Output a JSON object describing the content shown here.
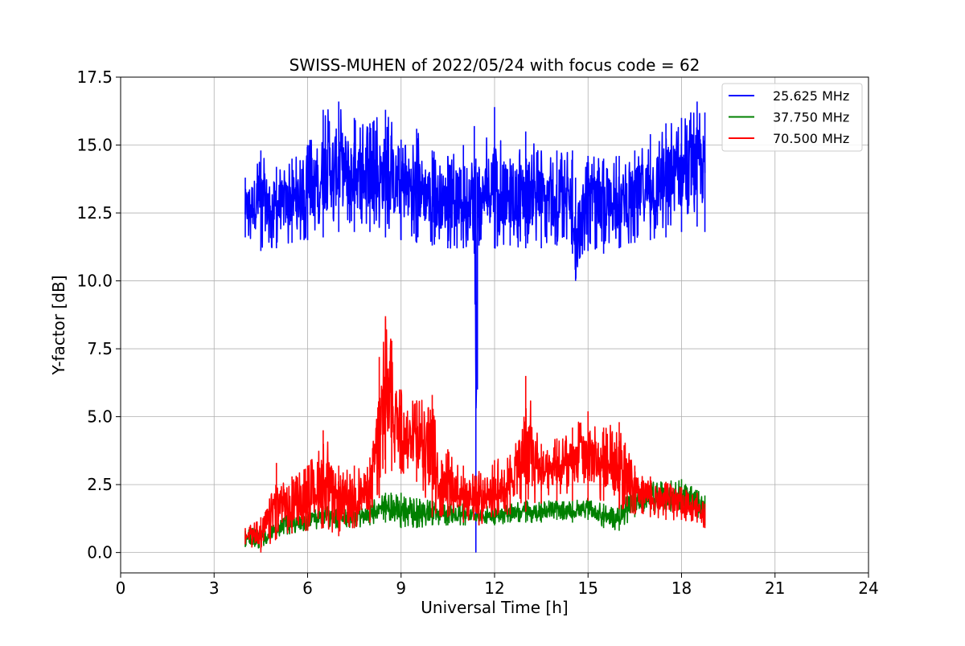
{
  "chart_data": {
    "type": "line",
    "title": "SWISS-MUHEN of 2022/05/24 with focus code = 62",
    "xlabel": "Universal Time [h]",
    "ylabel": "Y-factor [dB]",
    "xlim": [
      0,
      24
    ],
    "ylim": [
      -0.75,
      17.5
    ],
    "xticks": [
      0,
      3,
      6,
      9,
      12,
      15,
      18,
      21,
      24
    ],
    "xtick_labels": [
      "0",
      "3",
      "6",
      "9",
      "12",
      "15",
      "18",
      "21",
      "24"
    ],
    "yticks": [
      0,
      2.5,
      5,
      7.5,
      10,
      12.5,
      15,
      17.5
    ],
    "ytick_labels": [
      "0.0",
      "2.5",
      "5.0",
      "7.5",
      "10.0",
      "12.5",
      "15.0",
      "17.5"
    ],
    "grid": true,
    "legend_position": "top-right",
    "series": [
      {
        "name": "25.625 MHz",
        "color": "#0000ff",
        "x": [
          4.0,
          4.5,
          5.0,
          5.5,
          6.0,
          6.5,
          7.0,
          7.5,
          8.0,
          8.5,
          9.0,
          9.5,
          10.0,
          10.5,
          11.0,
          11.35,
          11.4,
          11.45,
          11.5,
          12.0,
          12.5,
          13.0,
          13.5,
          14.0,
          14.5,
          14.6,
          15.0,
          15.5,
          16.0,
          16.5,
          17.0,
          17.5,
          18.0,
          18.5,
          18.75
        ],
        "min": [
          11.6,
          11.1,
          11.2,
          11.4,
          11.5,
          11.6,
          11.8,
          11.8,
          11.8,
          11.6,
          11.5,
          11.4,
          11.3,
          11.2,
          11.2,
          11.0,
          0.0,
          6.0,
          11.3,
          11.2,
          11.3,
          11.2,
          11.2,
          11.3,
          11.0,
          10.0,
          11.1,
          11.0,
          11.2,
          11.4,
          11.5,
          11.6,
          11.8,
          12.0,
          11.8
        ],
        "max": [
          13.8,
          14.8,
          14.2,
          14.5,
          15.0,
          16.3,
          16.6,
          16.0,
          15.8,
          16.3,
          15.2,
          15.6,
          14.8,
          14.6,
          15.0,
          15.7,
          14.5,
          14.0,
          14.2,
          16.4,
          14.5,
          15.5,
          14.8,
          14.8,
          14.8,
          13.8,
          14.6,
          14.5,
          14.6,
          14.8,
          15.4,
          15.8,
          16.0,
          16.6,
          16.2
        ]
      },
      {
        "name": "37.750 MHz",
        "color": "#008000",
        "x": [
          4.0,
          4.5,
          5.0,
          5.5,
          6.0,
          6.5,
          7.0,
          7.5,
          8.0,
          8.5,
          9.0,
          9.5,
          10.0,
          10.5,
          11.0,
          11.5,
          12.0,
          12.5,
          13.0,
          13.5,
          14.0,
          14.5,
          15.0,
          15.5,
          16.0,
          16.5,
          17.0,
          17.5,
          18.0,
          18.5,
          18.75
        ],
        "min": [
          0.2,
          0.1,
          0.5,
          0.7,
          0.8,
          0.9,
          0.9,
          0.9,
          1.0,
          1.1,
          0.9,
          0.9,
          1.0,
          1.0,
          1.0,
          1.0,
          1.0,
          1.1,
          1.1,
          1.1,
          1.2,
          1.1,
          1.2,
          0.9,
          0.8,
          1.3,
          1.4,
          1.5,
          1.4,
          1.3,
          1.0
        ],
        "max": [
          0.8,
          1.0,
          1.2,
          1.5,
          1.6,
          1.7,
          1.8,
          1.7,
          1.9,
          2.2,
          2.2,
          2.0,
          1.9,
          1.8,
          1.8,
          1.7,
          1.8,
          1.8,
          1.9,
          1.9,
          1.9,
          1.9,
          2.0,
          1.8,
          1.7,
          2.5,
          2.6,
          2.6,
          2.7,
          2.3,
          2.1
        ]
      },
      {
        "name": "70.500 MHz",
        "color": "#ff0000",
        "x": [
          4.0,
          4.5,
          5.0,
          5.5,
          6.0,
          6.5,
          7.0,
          7.5,
          8.0,
          8.3,
          8.5,
          8.7,
          9.0,
          9.5,
          10.0,
          10.3,
          10.5,
          11.0,
          11.5,
          12.0,
          12.5,
          13.0,
          13.5,
          14.0,
          14.5,
          15.0,
          15.5,
          16.0,
          16.5,
          17.0,
          17.5,
          18.0,
          18.5,
          18.75
        ],
        "min": [
          0.3,
          0.0,
          0.5,
          0.7,
          0.8,
          0.9,
          0.6,
          0.9,
          1.1,
          2.0,
          2.9,
          3.0,
          2.9,
          2.6,
          1.3,
          1.3,
          1.3,
          1.1,
          1.0,
          1.3,
          1.4,
          1.5,
          1.8,
          1.9,
          1.9,
          1.9,
          1.9,
          1.6,
          1.4,
          1.3,
          1.2,
          1.2,
          1.1,
          0.9
        ],
        "max": [
          0.9,
          1.3,
          3.3,
          2.8,
          3.2,
          4.5,
          3.2,
          3.2,
          3.5,
          7.2,
          8.7,
          7.8,
          6.0,
          5.6,
          5.8,
          3.4,
          3.8,
          3.2,
          3.0,
          3.4,
          3.6,
          6.5,
          4.0,
          4.2,
          4.6,
          5.2,
          4.6,
          4.8,
          3.2,
          2.8,
          2.6,
          2.4,
          2.2,
          1.8
        ]
      }
    ]
  }
}
